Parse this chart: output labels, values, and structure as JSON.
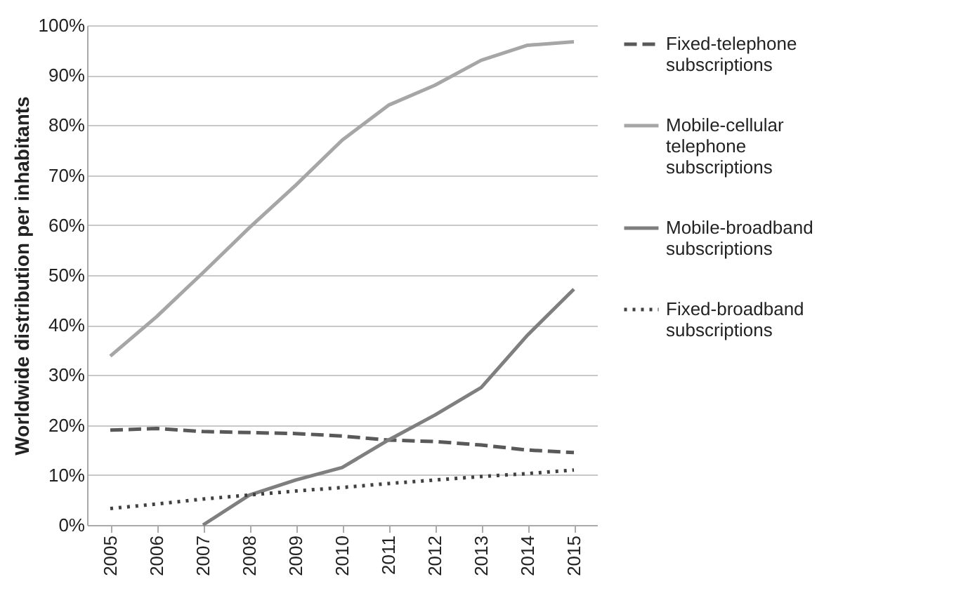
{
  "chart_data": {
    "type": "line",
    "ylabel": "Worldwide distribution per inhabitants",
    "categories": [
      "2005",
      "2006",
      "2007",
      "2008",
      "2009",
      "2010",
      "2011",
      "2012",
      "2013",
      "2014",
      "2015"
    ],
    "series": [
      {
        "name": "Fixed-telephone subscriptions",
        "color": "#595959",
        "line_style": "dashed",
        "values": [
          19,
          19.3,
          18.7,
          18.5,
          18.3,
          17.8,
          17,
          16.7,
          16,
          15,
          14.5
        ]
      },
      {
        "name": "Mobile-cellular telephone subscriptions",
        "color": "#a6a6a6",
        "line_style": "solid",
        "values": [
          33.8,
          41.7,
          50.5,
          59.5,
          68,
          77,
          84,
          88,
          93,
          96,
          96.7
        ]
      },
      {
        "name": "Mobile-broadband subscriptions",
        "color": "#7f7f7f",
        "line_style": "solid",
        "values": [
          null,
          null,
          0,
          6,
          9,
          11.5,
          17,
          22,
          27.5,
          38,
          47.2
        ]
      },
      {
        "name": "Fixed-broadband subscriptions",
        "color": "#404040",
        "line_style": "dotted",
        "values": [
          3.3,
          4.2,
          5.2,
          6,
          6.8,
          7.5,
          8.3,
          9,
          9.7,
          10.3,
          11
        ]
      }
    ],
    "ylim": [
      0,
      100
    ],
    "yticks": [
      {
        "value": 0,
        "label": "0%"
      },
      {
        "value": 10,
        "label": "10%"
      },
      {
        "value": 20,
        "label": "20%"
      },
      {
        "value": 30,
        "label": "30%"
      },
      {
        "value": 40,
        "label": "40%"
      },
      {
        "value": 50,
        "label": "50%"
      },
      {
        "value": 60,
        "label": "60%"
      },
      {
        "value": 70,
        "label": "70%"
      },
      {
        "value": 80,
        "label": "80%"
      },
      {
        "value": 90,
        "label": "90%"
      },
      {
        "value": 100,
        "label": "100%"
      }
    ],
    "grid": "y",
    "legend": "right",
    "marker": "none"
  }
}
